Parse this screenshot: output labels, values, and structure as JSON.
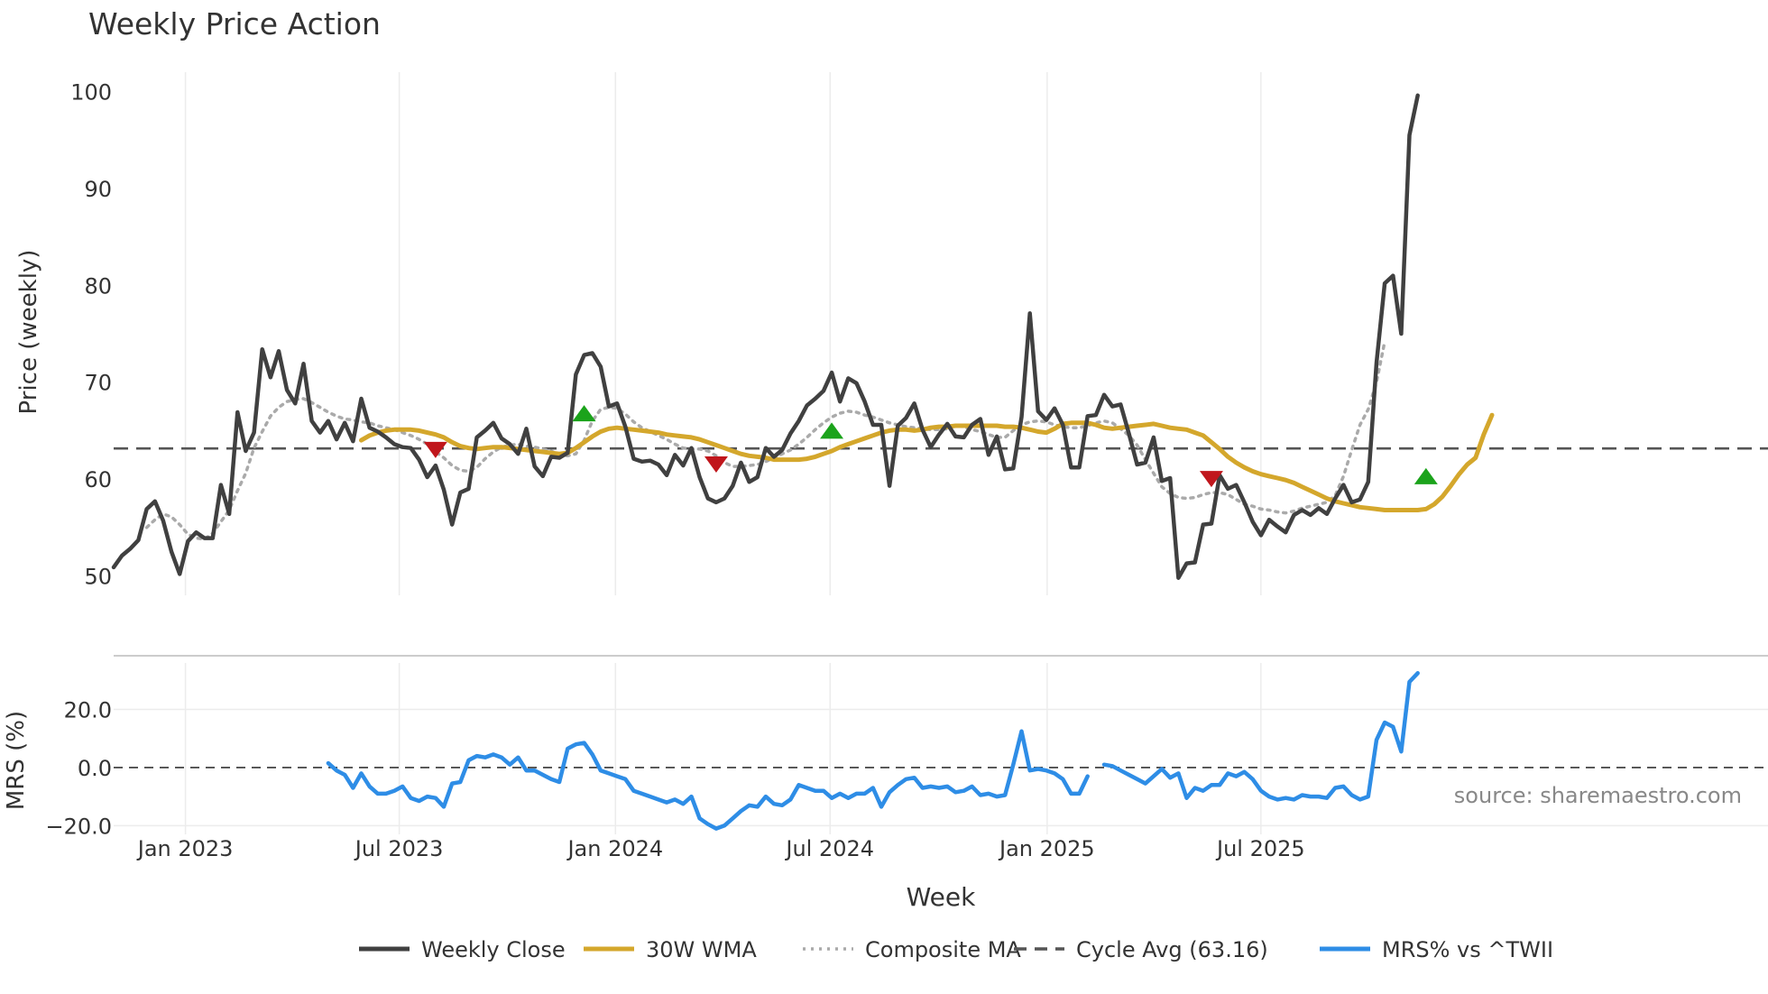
{
  "chart_data": {
    "type": "line",
    "title": "Weekly Price Action",
    "xlabel": "Week",
    "x_ticks": [
      "Jan 2023",
      "Jul 2023",
      "Jan 2024",
      "Jul 2024",
      "Jan 2025",
      "Jul 2025"
    ],
    "price_panel": {
      "ylabel": "Price (weekly)",
      "ylim": [
        48,
        102
      ],
      "y_ticks": [
        "50",
        "60",
        "70",
        "80",
        "90",
        "100"
      ],
      "cycle_avg": 63.16,
      "series": [
        {
          "name": "Weekly Close",
          "color": "#404040",
          "start_week": 0,
          "values": [
            50.9,
            52.1,
            52.8,
            53.7,
            56.9,
            57.7,
            55.7,
            52.5,
            50.2,
            53.6,
            54.5,
            53.9,
            53.9,
            59.4,
            56.4,
            66.9,
            62.9,
            64.8,
            73.4,
            70.5,
            73.2,
            69.2,
            67.8,
            71.9,
            66.0,
            64.8,
            66.0,
            64.1,
            65.8,
            63.9,
            68.3,
            65.3,
            64.9,
            64.3,
            63.6,
            63.3,
            63.2,
            62.0,
            60.2,
            61.4,
            58.9,
            55.3,
            58.6,
            59.0,
            64.3,
            65.0,
            65.8,
            64.2,
            63.6,
            62.6,
            65.2,
            61.3,
            60.3,
            62.3,
            62.2,
            62.7,
            70.8,
            72.8,
            73.0,
            71.6,
            67.5,
            67.8,
            65.4,
            62.1,
            61.8,
            61.9,
            61.5,
            60.4,
            62.5,
            61.4,
            63.2,
            60.2,
            58.0,
            57.6,
            58.0,
            59.3,
            61.7,
            59.7,
            60.2,
            63.2,
            62.3,
            63.0,
            64.7,
            66.0,
            67.6,
            68.3,
            69.1,
            71.0,
            68.0,
            70.4,
            69.9,
            68.0,
            65.6,
            65.6,
            59.3,
            65.5,
            66.3,
            67.8,
            65.1,
            63.3,
            64.6,
            65.7,
            64.4,
            64.3,
            65.6,
            66.2,
            62.5,
            64.4,
            61.0,
            61.1,
            66.4,
            77.1,
            67.0,
            66.1,
            67.3,
            65.6,
            61.2,
            61.2,
            66.5,
            66.6,
            68.7,
            67.5,
            67.7,
            64.7,
            61.5,
            61.7,
            64.3,
            59.8,
            60.1,
            49.8,
            51.3,
            51.4,
            55.3,
            55.4,
            60.4,
            59.0,
            59.4,
            57.6,
            55.6,
            54.2,
            55.8,
            55.1,
            54.5,
            56.3,
            56.8,
            56.3,
            57.0,
            56.4,
            58.0,
            59.4,
            57.6,
            57.9,
            59.7,
            72.0,
            80.2,
            81.0,
            75.0,
            95.5,
            99.6
          ]
        },
        {
          "name": "30W WMA",
          "color": "#D4A72C",
          "start_week": 30,
          "values": [
            64.0,
            64.5,
            64.8,
            65.0,
            65.1,
            65.1,
            65.1,
            65.0,
            64.8,
            64.6,
            64.3,
            63.8,
            63.4,
            63.2,
            63.1,
            63.2,
            63.3,
            63.3,
            63.2,
            63.1,
            63.0,
            62.9,
            62.8,
            62.7,
            62.6,
            62.7,
            63.2,
            63.8,
            64.4,
            64.9,
            65.2,
            65.3,
            65.2,
            65.1,
            65.0,
            64.9,
            64.8,
            64.6,
            64.5,
            64.4,
            64.3,
            64.1,
            63.8,
            63.5,
            63.2,
            62.9,
            62.6,
            62.4,
            62.3,
            62.2,
            62.0,
            62.0,
            62.0,
            62.0,
            62.1,
            62.3,
            62.6,
            62.9,
            63.3,
            63.6,
            63.9,
            64.2,
            64.5,
            64.8,
            65.0,
            65.1,
            65.1,
            65.0,
            65.1,
            65.3,
            65.4,
            65.4,
            65.5,
            65.5,
            65.5,
            65.5,
            65.5,
            65.5,
            65.4,
            65.4,
            65.3,
            65.1,
            64.9,
            64.8,
            65.2,
            65.7,
            65.8,
            65.8,
            65.8,
            65.6,
            65.3,
            65.2,
            65.3,
            65.4,
            65.5,
            65.6,
            65.7,
            65.5,
            65.3,
            65.2,
            65.1,
            64.8,
            64.5,
            63.8,
            63.1,
            62.3,
            61.7,
            61.2,
            60.8,
            60.5,
            60.3,
            60.1,
            59.9,
            59.6,
            59.2,
            58.8,
            58.4,
            58.0,
            57.7,
            57.5,
            57.3,
            57.1,
            57.0,
            56.9,
            56.8,
            56.8,
            56.8,
            56.8,
            56.8,
            56.9,
            57.4,
            58.2,
            59.3,
            60.5,
            61.5,
            62.2,
            64.6,
            66.6
          ]
        },
        {
          "name": "Composite MA",
          "color": "#AAAAAA",
          "start_week": 4,
          "values": [
            55.0,
            55.8,
            56.4,
            56.1,
            55.3,
            54.3,
            53.9,
            53.8,
            54.4,
            55.6,
            56.8,
            58.8,
            60.6,
            63.2,
            64.9,
            66.5,
            67.4,
            68.0,
            68.2,
            68.3,
            67.9,
            67.4,
            66.9,
            66.5,
            66.2,
            66.1,
            65.9,
            65.8,
            65.5,
            65.3,
            65.1,
            64.8,
            64.5,
            64.1,
            63.6,
            62.8,
            62.2,
            61.4,
            60.9,
            60.8,
            61.2,
            62.1,
            62.8,
            63.3,
            63.5,
            63.6,
            63.4,
            63.3,
            63.1,
            62.9,
            62.5,
            62.4,
            62.6,
            64.0,
            66.0,
            67.2,
            67.4,
            67.3,
            66.7,
            65.9,
            65.3,
            64.9,
            64.5,
            64.1,
            63.6,
            63.2,
            63.1,
            63.1,
            62.9,
            62.4,
            61.7,
            61.3,
            61.3,
            61.4,
            61.5,
            61.8,
            62.2,
            62.6,
            63.0,
            63.6,
            64.3,
            65.1,
            65.8,
            66.4,
            66.8,
            67.0,
            66.9,
            66.6,
            66.4,
            66.1,
            65.8,
            65.6,
            65.4,
            65.3,
            65.2,
            65.1,
            65.1,
            65.2,
            65.5,
            65.4,
            65.1,
            64.9,
            64.6,
            64.3,
            64.3,
            65.0,
            65.6,
            65.9,
            66.0,
            65.9,
            65.6,
            65.4,
            65.3,
            65.3,
            65.5,
            65.8,
            66.0,
            65.8,
            65.2,
            64.5,
            63.5,
            62.0,
            60.6,
            59.2,
            58.5,
            58.1,
            58.0,
            58.1,
            58.4,
            58.6,
            58.6,
            58.4,
            57.9,
            57.4,
            57.2,
            56.9,
            56.8,
            56.6,
            56.5,
            56.7,
            57.0,
            57.2,
            57.4,
            57.6,
            58.3,
            60.3,
            63.0,
            65.6,
            67.2,
            70.0,
            74.2
          ]
        }
      ],
      "markers": [
        {
          "type": "sell",
          "week": 39,
          "value": 63.0,
          "color": "#C0161C"
        },
        {
          "type": "buy",
          "week": 57,
          "value": 66.8,
          "color": "#1BA31B"
        },
        {
          "type": "sell",
          "week": 73,
          "value": 61.5,
          "color": "#C0161C"
        },
        {
          "type": "buy",
          "week": 87,
          "value": 65.0,
          "color": "#1BA31B"
        },
        {
          "type": "sell",
          "week": 133,
          "value": 60.0,
          "color": "#C0161C"
        },
        {
          "type": "buy",
          "week": 159,
          "value": 60.3,
          "color": "#1BA31B"
        }
      ]
    },
    "mrs_panel": {
      "ylabel": "MRS (%)",
      "ylim": [
        -23,
        36
      ],
      "y_ticks": [
        "20.0",
        "0.0",
        "−20.0"
      ],
      "zero_line": 0,
      "series": [
        {
          "name": "MRS% vs ^TWII",
          "color": "#2E8DE6",
          "segments": [
            {
              "start_week": 26,
              "values": [
                1.5,
                -1.0,
                -2.5,
                -7.0,
                -2.0,
                -6.5,
                -9.0,
                -9.0,
                -8.0,
                -6.5,
                -10.5,
                -11.5,
                -10.0,
                -10.5,
                -13.5,
                -5.5,
                -5.0,
                2.5,
                4.0,
                3.5,
                4.5,
                3.5,
                1.0,
                3.5,
                -1.0,
                -1.0,
                -2.5,
                -4.0,
                -5.0,
                6.5,
                8.0,
                8.5,
                4.5,
                -1.0,
                -2.0,
                -3.0,
                -4.0,
                -8.0,
                -9.0,
                -10.0,
                -11.0,
                -12.0,
                -11.0,
                -12.5,
                -10.0,
                -17.5,
                -19.5,
                -21.0,
                -20.0,
                -17.5,
                -15.0,
                -13.0,
                -13.5,
                -10.0,
                -12.5,
                -13.0,
                -11.0,
                -6.0,
                -7.0,
                -8.0,
                -8.0,
                -10.5,
                -9.0,
                -10.5,
                -9.0,
                -9.0,
                -7.0,
                -13.5,
                -8.5,
                -6.0,
                -4.0,
                -3.5,
                -7.0,
                -6.5,
                -7.0,
                -6.5,
                -8.5,
                -8.0,
                -6.5,
                -9.5,
                -9.0,
                -10.0,
                -9.5,
                1.0,
                12.5,
                -1.0,
                -0.5,
                -1.0,
                -2.0,
                -4.0,
                -9.0,
                -9.0,
                -3.0
              ]
            },
            {
              "start_week": 120,
              "values": [
                1.0,
                0.5,
                -1.0,
                -2.5,
                -4.0,
                -5.5,
                -3.0,
                -0.5,
                -3.5,
                -2.0,
                -10.5,
                -7.0,
                -8.0,
                -6.0,
                -6.0,
                -2.0,
                -3.0,
                -1.5,
                -4.0,
                -8.0,
                -10.0,
                -11.0,
                -10.5,
                -11.0,
                -9.5,
                -10.0,
                -10.0,
                -10.5,
                -7.0,
                -6.5,
                -9.5,
                -11.0,
                -10.0,
                9.5,
                15.5,
                14.0,
                5.5,
                29.5,
                32.5
              ]
            }
          ]
        }
      ]
    },
    "legend": [
      {
        "label": "Weekly Close",
        "style": "solid",
        "color": "#404040"
      },
      {
        "label": "30W WMA",
        "style": "solid",
        "color": "#D4A72C"
      },
      {
        "label": "Composite MA",
        "style": "dotted",
        "color": "#AAAAAA"
      },
      {
        "label": "Cycle Avg (63.16)",
        "style": "dashed",
        "color": "#555555"
      },
      {
        "label": "MRS% vs ^TWII",
        "style": "solid",
        "color": "#2E8DE6"
      }
    ],
    "watermark": "source: sharemaestro.com"
  }
}
